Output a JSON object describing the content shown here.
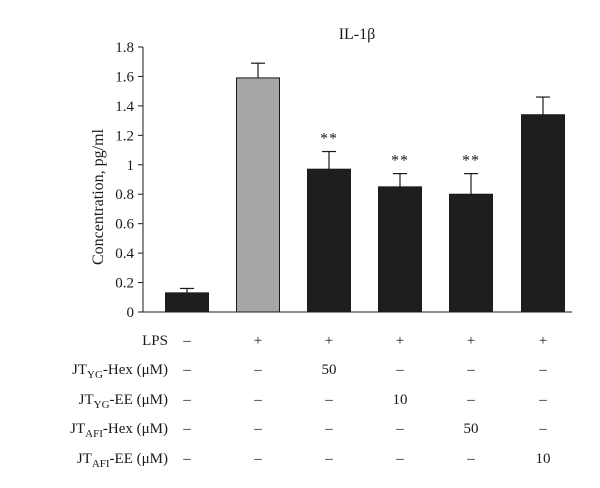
{
  "chart_data": {
    "type": "bar",
    "title": "IL-1β",
    "ylabel": "Concentration, pg/ml",
    "ylim": [
      0,
      1.8
    ],
    "yticks": [
      "0",
      "0.2",
      "0.4",
      "0.6",
      "0.8",
      "1",
      "1.2",
      "1.4",
      "1.6",
      "1.8"
    ],
    "values": [
      0.13,
      1.59,
      0.97,
      0.85,
      0.8,
      1.34
    ],
    "errors": [
      0.03,
      0.1,
      0.12,
      0.09,
      0.14,
      0.12
    ],
    "significance": [
      "",
      "",
      "**",
      "**",
      "**",
      ""
    ],
    "bar_colors": [
      "#1e1e1e",
      "#a6a6a6",
      "#1e1e1e",
      "#1e1e1e",
      "#1e1e1e",
      "#1e1e1e"
    ],
    "grid": false,
    "legend": "none"
  },
  "conditions": [
    {
      "base": "LPS",
      "sub": "",
      "suffix": "",
      "cells": [
        "–",
        "+",
        "+",
        "+",
        "+",
        "+"
      ]
    },
    {
      "base": "JT",
      "sub": "YG",
      "suffix": "-Hex (μM)",
      "cells": [
        "–",
        "–",
        "50",
        "–",
        "–",
        "–"
      ]
    },
    {
      "base": "JT",
      "sub": "YG",
      "suffix": "-EE (μM)",
      "cells": [
        "–",
        "–",
        "–",
        "10",
        "–",
        "–"
      ]
    },
    {
      "base": "JT",
      "sub": "AFI",
      "suffix": "-Hex (μM)",
      "cells": [
        "–",
        "–",
        "–",
        "–",
        "50",
        "–"
      ]
    },
    {
      "base": "JT",
      "sub": "AFI",
      "suffix": "-EE (μM)",
      "cells": [
        "–",
        "–",
        "–",
        "–",
        "–",
        "10"
      ]
    }
  ]
}
